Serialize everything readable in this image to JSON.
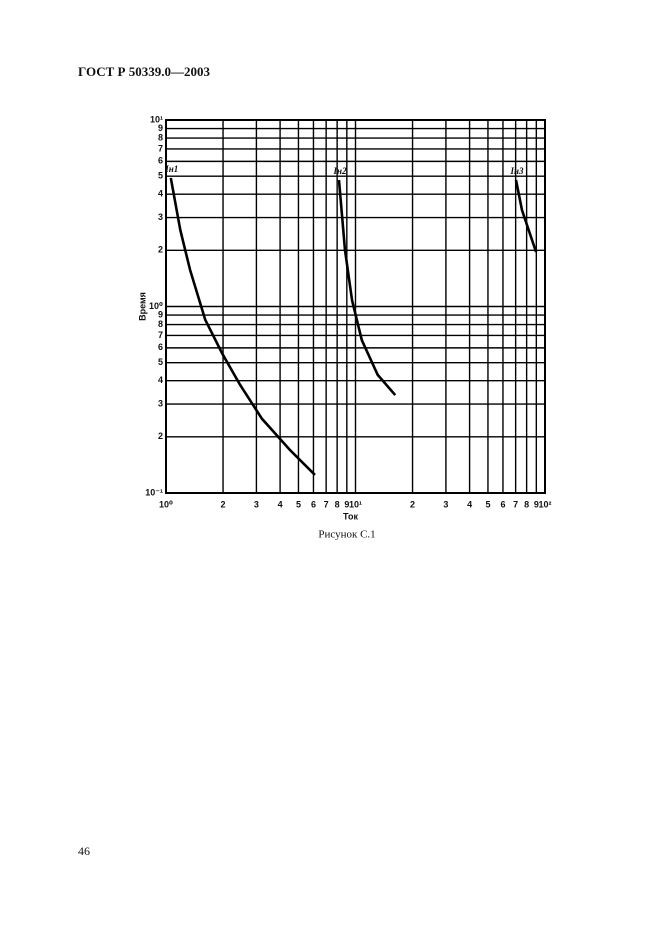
{
  "header": {
    "title": "ГОСТ Р 50339.0—2003"
  },
  "caption": "Рисунок С.1",
  "page_number": "46",
  "chart_data": {
    "type": "line",
    "xscale": "log",
    "yscale": "log",
    "grid": true,
    "x_label": "Ток",
    "y_label": "Время",
    "xlim": [
      1,
      100
    ],
    "ylim": [
      0.1,
      10
    ],
    "xticks": [
      {
        "value": 1,
        "label": "10⁰"
      },
      2,
      3,
      4,
      5,
      6,
      7,
      8,
      9,
      {
        "value": 10,
        "label": "10¹"
      },
      {
        "value": 20,
        "label": "2"
      },
      {
        "value": 30,
        "label": "3"
      },
      {
        "value": 40,
        "label": "4"
      },
      {
        "value": 50,
        "label": "5"
      },
      {
        "value": 60,
        "label": "6"
      },
      {
        "value": 70,
        "label": "7"
      },
      {
        "value": 80,
        "label": "8"
      },
      {
        "value": 90,
        "label": "9"
      },
      {
        "value": 100,
        "label": "10²"
      }
    ],
    "yticks": [
      {
        "value": 0.1,
        "label": "10⁻¹"
      },
      {
        "value": 0.2,
        "label": "2"
      },
      {
        "value": 0.3,
        "label": "3"
      },
      {
        "value": 0.4,
        "label": "4"
      },
      {
        "value": 0.5,
        "label": "5"
      },
      {
        "value": 0.6,
        "label": "6"
      },
      {
        "value": 0.7,
        "label": "7"
      },
      {
        "value": 0.8,
        "label": "8"
      },
      {
        "value": 0.9,
        "label": "9"
      },
      {
        "value": 1,
        "label": "10⁰"
      },
      2,
      3,
      4,
      5,
      6,
      7,
      8,
      9,
      {
        "value": 10,
        "label": "10¹"
      }
    ],
    "series": [
      {
        "name": "Iн1",
        "color": "#000000",
        "x": [
          1.06,
          1.19,
          1.34,
          1.61,
          1.98,
          2.46,
          3.21,
          4.51,
          6.11
        ],
        "values": [
          4.89,
          2.57,
          1.57,
          0.85,
          0.56,
          0.38,
          0.25,
          0.17,
          0.125
        ]
      },
      {
        "name": "Iн2",
        "color": "#000000",
        "x": [
          8.18,
          8.8,
          9.59,
          10.8,
          13.1,
          16.2
        ],
        "values": [
          4.77,
          2.01,
          1.08,
          0.66,
          0.43,
          0.335
        ]
      },
      {
        "name": "Iн3",
        "color": "#000000",
        "x": [
          70.3,
          75.6,
          89.7
        ],
        "values": [
          4.77,
          3.29,
          1.96
        ]
      }
    ]
  }
}
